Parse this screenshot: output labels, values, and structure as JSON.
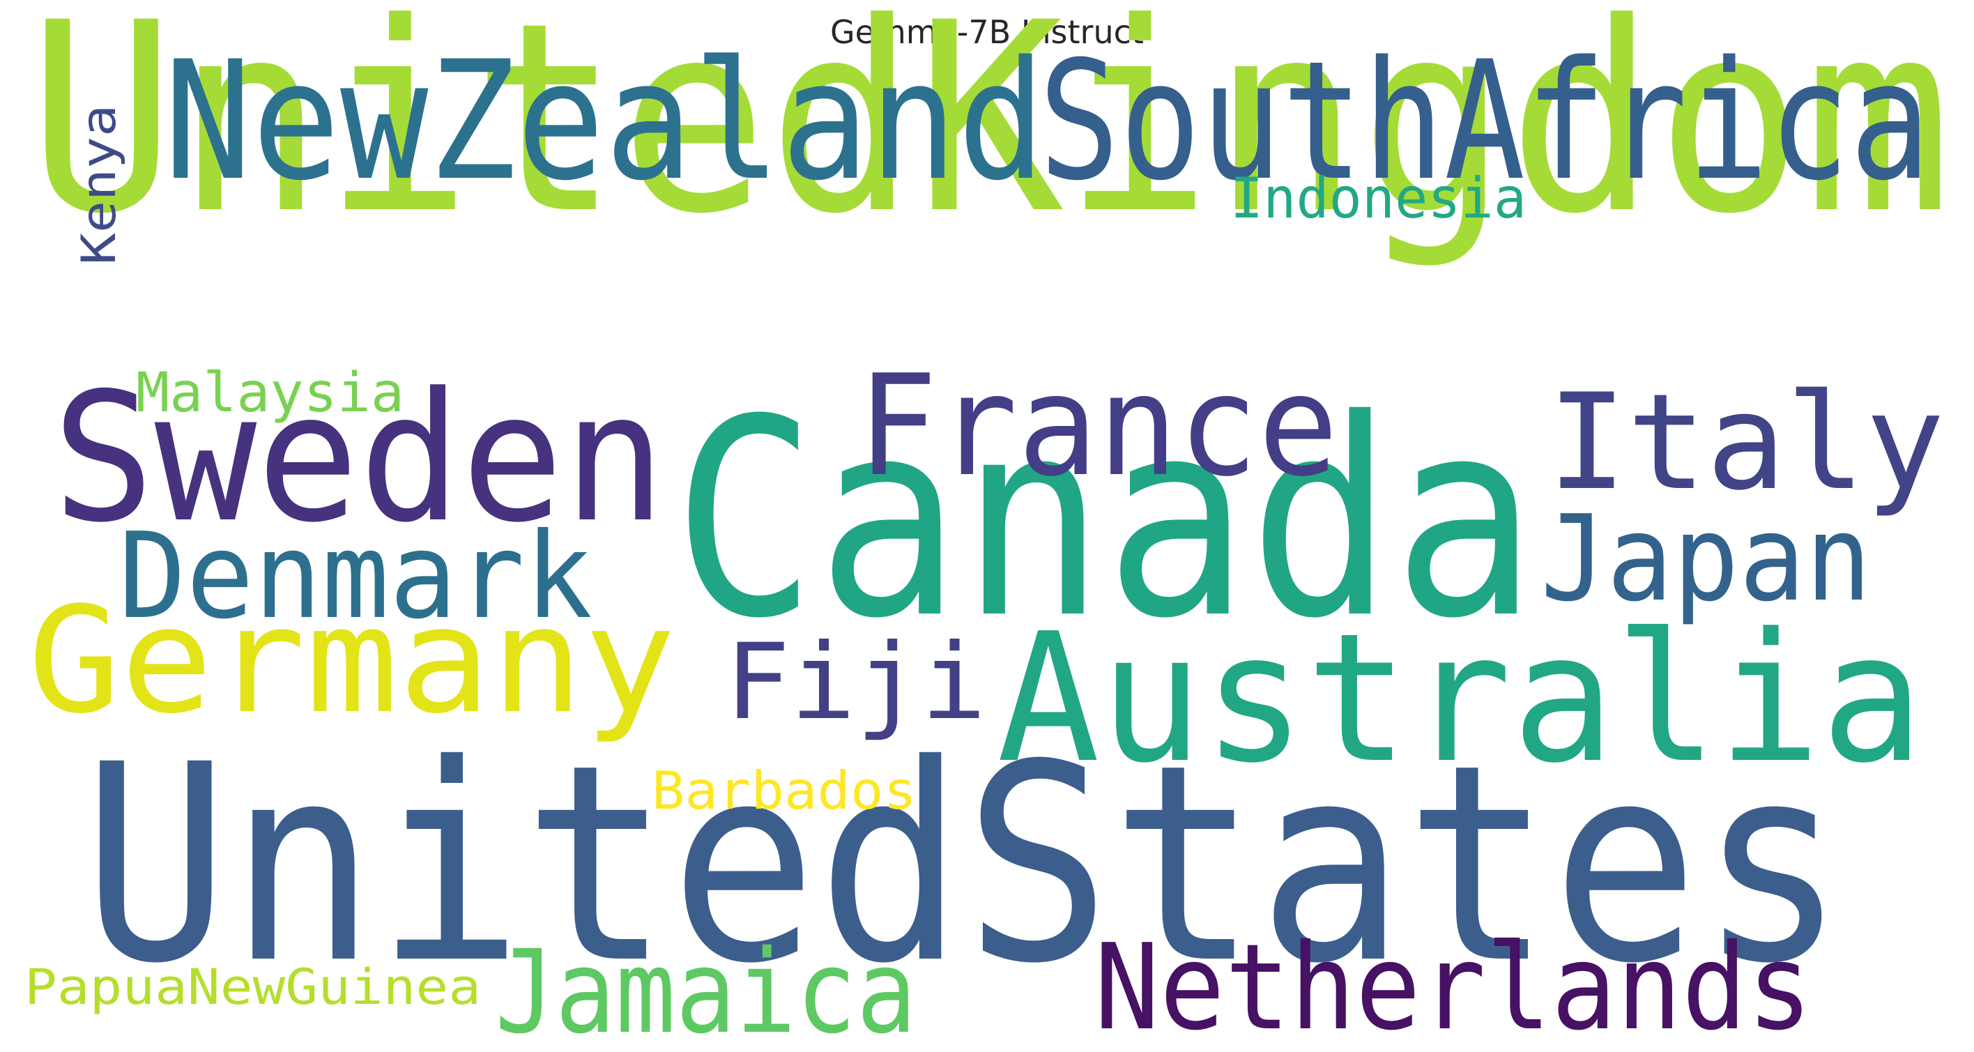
{
  "chart_data": {
    "type": "wordcloud",
    "title": "Gemma-7B Instruct",
    "words": [
      {
        "text": "UnitedKingdom",
        "color": "#a5db36"
      },
      {
        "text": "UnitedStates",
        "color": "#3b5e8c"
      },
      {
        "text": "Canada",
        "color": "#21a685"
      },
      {
        "text": "NewZealand",
        "color": "#2c728e"
      },
      {
        "text": "SouthAfrica",
        "color": "#355f8d"
      },
      {
        "text": "Sweden",
        "color": "#46327e"
      },
      {
        "text": "Australia",
        "color": "#22a785"
      },
      {
        "text": "France",
        "color": "#433e85"
      },
      {
        "text": "Italy",
        "color": "#414487"
      },
      {
        "text": "Germany",
        "color": "#e3e418"
      },
      {
        "text": "Denmark",
        "color": "#2d708e"
      },
      {
        "text": "Netherlands",
        "color": "#471164"
      },
      {
        "text": "Japan",
        "color": "#33638d"
      },
      {
        "text": "Jamaica",
        "color": "#5ec962"
      },
      {
        "text": "Fiji",
        "color": "#424186"
      },
      {
        "text": "Indonesia",
        "color": "#22a884"
      },
      {
        "text": "Malaysia",
        "color": "#7ad151"
      },
      {
        "text": "Barbados",
        "color": "#fde725"
      },
      {
        "text": "PapuaNewGuinea",
        "color": "#b5de2b"
      },
      {
        "text": "Kenya",
        "color": "#3e4a89"
      }
    ]
  }
}
